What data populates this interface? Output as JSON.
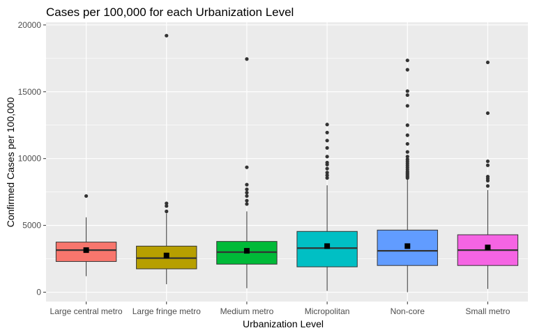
{
  "chart_data": {
    "type": "boxplot",
    "title": "Cases per 100,000 for each Urbanization Level",
    "xlabel": "Urbanization Level",
    "ylabel": "Confirmed Cases per 100,000",
    "ylim": [
      -700,
      20200
    ],
    "yticks": [
      0,
      5000,
      10000,
      15000,
      20000
    ],
    "ytick_labels": [
      "0",
      "5000",
      "10000",
      "15000",
      "20000"
    ],
    "grid": true,
    "legend": "none",
    "categories": [
      "Large central metro",
      "Large fringe metro",
      "Medium metro",
      "Micropolitan",
      "Non-core",
      "Small metro"
    ],
    "colors": [
      "#F8766D",
      "#B79F00",
      "#00BA38",
      "#00BFC4",
      "#619CFF",
      "#F564E3"
    ],
    "boxes": [
      {
        "category": "Large central metro",
        "whisker_low": 1200,
        "q1": 2300,
        "median": 3150,
        "q3": 3750,
        "whisker_high": 5600,
        "mean": 3150,
        "outliers": [
          7200
        ]
      },
      {
        "category": "Large fringe metro",
        "whisker_low": 600,
        "q1": 1750,
        "median": 2550,
        "q3": 3450,
        "whisker_high": 5900,
        "mean": 2750,
        "outliers": [
          6050,
          6450,
          6650,
          19200
        ]
      },
      {
        "category": "Medium metro",
        "whisker_low": 300,
        "q1": 2100,
        "median": 3000,
        "q3": 3800,
        "whisker_high": 6050,
        "mean": 3100,
        "outliers": [
          6600,
          6850,
          7200,
          7450,
          7700,
          8050,
          9350,
          17450
        ]
      },
      {
        "category": "Micropolitan",
        "whisker_low": 100,
        "q1": 1900,
        "median": 3300,
        "q3": 4550,
        "whisker_high": 8000,
        "mean": 3450,
        "outliers": [
          8550,
          8750,
          8950,
          9250,
          9550,
          9700,
          10150,
          10800,
          11350,
          11950,
          12550
        ]
      },
      {
        "category": "Non-core",
        "whisker_low": 0,
        "q1": 2000,
        "median": 3100,
        "q3": 4650,
        "whisker_high": 8450,
        "mean": 3450,
        "outliers": [
          8550,
          8650,
          8750,
          8850,
          8950,
          9050,
          9200,
          9350,
          9500,
          9650,
          9800,
          9950,
          10150,
          10500,
          11100,
          11750,
          12500,
          13950,
          14750,
          15050,
          16650,
          17350
        ]
      },
      {
        "category": "Small metro",
        "whisker_low": 250,
        "q1": 2000,
        "median": 3150,
        "q3": 4300,
        "whisker_high": 7650,
        "mean": 3350,
        "outliers": [
          7950,
          8350,
          8500,
          8650,
          9500,
          9800,
          13400,
          17200
        ]
      }
    ]
  }
}
